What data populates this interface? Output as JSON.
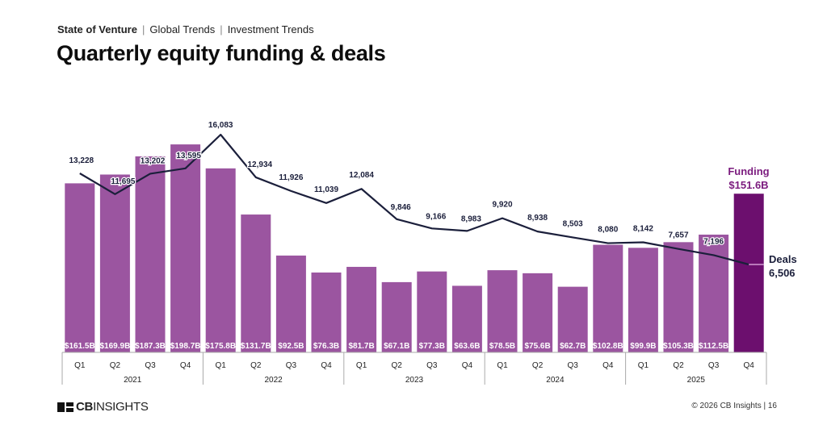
{
  "header": {
    "breadcrumb": [
      "State of Venture",
      "Global Trends",
      "Investment Trends"
    ],
    "title": "Quarterly equity funding & deals"
  },
  "footer": {
    "logo_bold": "CB",
    "logo_rest": "INSIGHTS",
    "copyright": "© 2026 CB Insights  |  16"
  },
  "colors": {
    "bar": "#9b55a0",
    "bar_highlight": "#6c0f6e",
    "line": "#1b1f3b",
    "bar_label": "#ffffff",
    "highlight_label": "#7b1b7e"
  },
  "chart_data": {
    "type": "bar+line",
    "title": "Quarterly equity funding & deals",
    "categories": [
      "Q1",
      "Q2",
      "Q3",
      "Q4",
      "Q1",
      "Q2",
      "Q3",
      "Q4",
      "Q1",
      "Q2",
      "Q3",
      "Q4",
      "Q1",
      "Q2",
      "Q3",
      "Q4",
      "Q1",
      "Q2",
      "Q3",
      "Q4"
    ],
    "groups": [
      {
        "label": "2021",
        "count": 4
      },
      {
        "label": "2022",
        "count": 4
      },
      {
        "label": "2023",
        "count": 4
      },
      {
        "label": "2024",
        "count": 4
      },
      {
        "label": "2025",
        "count": 4
      }
    ],
    "series": [
      {
        "name": "Funding",
        "type": "bar",
        "unit": "$B",
        "values": [
          161.5,
          169.9,
          187.3,
          198.7,
          175.8,
          131.7,
          92.5,
          76.3,
          81.7,
          67.1,
          77.3,
          63.6,
          78.5,
          75.6,
          62.7,
          102.8,
          99.9,
          105.3,
          112.5,
          151.6
        ],
        "labels": [
          "$161.5B",
          "$169.9B",
          "$187.3B",
          "$198.7B",
          "$175.8B",
          "$131.7B",
          "$92.5B",
          "$76.3B",
          "$81.7B",
          "$67.1B",
          "$77.3B",
          "$63.6B",
          "$78.5B",
          "$75.6B",
          "$62.7B",
          "$102.8B",
          "$99.9B",
          "$105.3B",
          "$112.5B",
          ""
        ]
      },
      {
        "name": "Deals",
        "type": "line",
        "values": [
          13228,
          11695,
          13202,
          13595,
          16083,
          12934,
          11926,
          11039,
          12084,
          9846,
          9166,
          8983,
          9920,
          8938,
          8503,
          8080,
          8142,
          7657,
          7196,
          6506
        ],
        "labels": [
          "13,228",
          "11,695",
          "13,202",
          "13,595",
          "16,083",
          "12,934",
          "11,926",
          "11,039",
          "12,084",
          "9,846",
          "9,166",
          "8,983",
          "9,920",
          "8,938",
          "8,503",
          "8,080",
          "8,142",
          "7,657",
          "7,196",
          ""
        ]
      }
    ],
    "annotations": {
      "funding_title": "Funding",
      "funding_value": "$151.6B",
      "deals_title": "Deals",
      "deals_value": "6,506"
    },
    "grid": false,
    "legend": "none"
  }
}
